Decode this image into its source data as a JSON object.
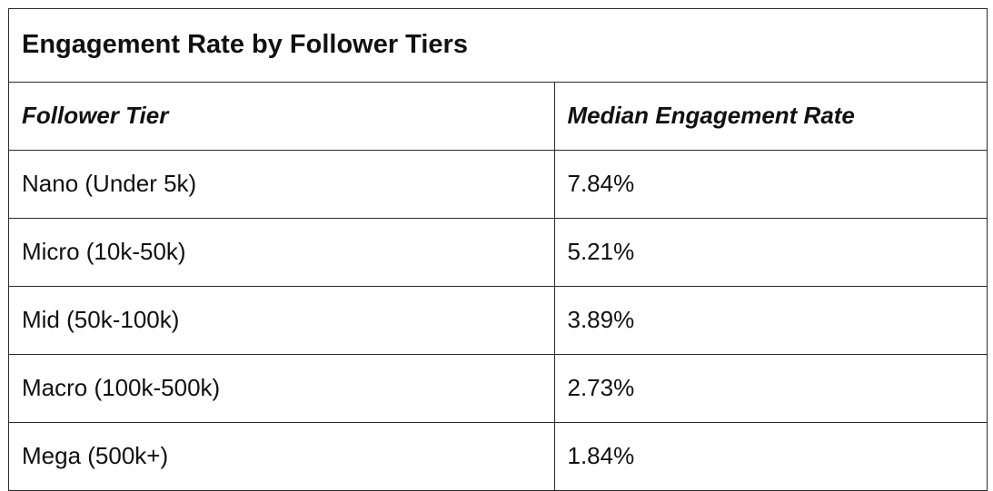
{
  "table": {
    "title": "Engagement Rate by Follower Tiers",
    "headers": [
      "Follower Tier",
      "Median Engagement Rate"
    ],
    "rows": [
      {
        "tier": "Nano (Under 5k)",
        "rate": "7.84%"
      },
      {
        "tier": "Micro (10k-50k)",
        "rate": "5.21%"
      },
      {
        "tier": "Mid (50k-100k)",
        "rate": "3.89%"
      },
      {
        "tier": "Macro (100k-500k)",
        "rate": "2.73%"
      },
      {
        "tier": "Mega (500k+)",
        "rate": "1.84%"
      }
    ]
  }
}
